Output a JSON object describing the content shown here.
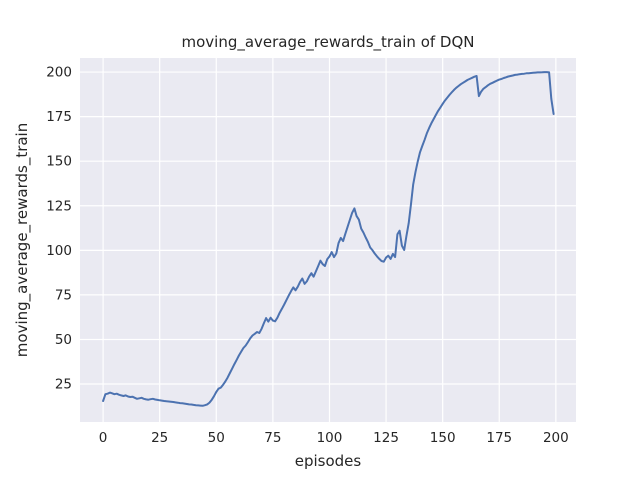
{
  "chart_data": {
    "type": "line",
    "title": "moving_average_rewards_train of DQN",
    "xlabel": "episodes",
    "ylabel": "moving_average_rewards_train",
    "x_ticks": [
      0,
      25,
      50,
      75,
      100,
      125,
      150,
      175,
      200
    ],
    "y_ticks": [
      25,
      50,
      75,
      100,
      125,
      150,
      175,
      200
    ],
    "xlim": [
      -10.2,
      208.9
    ],
    "ylim": [
      3.7,
      207.9
    ],
    "grid": true,
    "legend_visible": false,
    "style": {
      "figure_background": "#ffffff",
      "panel_background": "#eaeaf2",
      "grid_color": "#ffffff",
      "line_color": "#4c72b0",
      "text_color": "#262626"
    },
    "series": [
      {
        "name": "moving_average_rewards_train",
        "points": [
          [
            0,
            15.5
          ],
          [
            1,
            19.3
          ],
          [
            2,
            19.6
          ],
          [
            3,
            20.2
          ],
          [
            4,
            19.8
          ],
          [
            5,
            19.3
          ],
          [
            6,
            19.6
          ],
          [
            7,
            19.0
          ],
          [
            8,
            18.6
          ],
          [
            9,
            18.3
          ],
          [
            10,
            18.6
          ],
          [
            11,
            18.0
          ],
          [
            12,
            17.7
          ],
          [
            13,
            17.9
          ],
          [
            14,
            17.3
          ],
          [
            15,
            16.7
          ],
          [
            16,
            17.0
          ],
          [
            17,
            17.3
          ],
          [
            18,
            16.7
          ],
          [
            19,
            16.4
          ],
          [
            20,
            16.2
          ],
          [
            21,
            16.5
          ],
          [
            22,
            16.7
          ],
          [
            23,
            16.3
          ],
          [
            24,
            16.1
          ],
          [
            25,
            15.9
          ],
          [
            26,
            15.7
          ],
          [
            27,
            15.5
          ],
          [
            28,
            15.3
          ],
          [
            29,
            15.2
          ],
          [
            30,
            15.1
          ],
          [
            31,
            14.9
          ],
          [
            32,
            14.7
          ],
          [
            33,
            14.5
          ],
          [
            34,
            14.3
          ],
          [
            35,
            14.2
          ],
          [
            36,
            14.0
          ],
          [
            37,
            13.8
          ],
          [
            38,
            13.6
          ],
          [
            39,
            13.5
          ],
          [
            40,
            13.3
          ],
          [
            41,
            13.1
          ],
          [
            42,
            13.0
          ],
          [
            43,
            12.9
          ],
          [
            44,
            12.8
          ],
          [
            45,
            13.1
          ],
          [
            46,
            13.6
          ],
          [
            47,
            14.6
          ],
          [
            48,
            16.2
          ],
          [
            49,
            18.2
          ],
          [
            50,
            20.6
          ],
          [
            51,
            22.4
          ],
          [
            52,
            23.0
          ],
          [
            53,
            24.6
          ],
          [
            54,
            26.4
          ],
          [
            55,
            28.6
          ],
          [
            56,
            31.2
          ],
          [
            57,
            33.6
          ],
          [
            58,
            36.2
          ],
          [
            59,
            38.6
          ],
          [
            60,
            41.0
          ],
          [
            61,
            43.2
          ],
          [
            62,
            45.2
          ],
          [
            63,
            46.6
          ],
          [
            64,
            48.6
          ],
          [
            65,
            50.6
          ],
          [
            66,
            52.2
          ],
          [
            67,
            53.2
          ],
          [
            68,
            54.2
          ],
          [
            69,
            53.6
          ],
          [
            70,
            56.0
          ],
          [
            71,
            59.0
          ],
          [
            72,
            62.0
          ],
          [
            73,
            60.0
          ],
          [
            74,
            62.2
          ],
          [
            75,
            60.6
          ],
          [
            76,
            60.2
          ],
          [
            77,
            62.2
          ],
          [
            78,
            65.0
          ],
          [
            79,
            67.2
          ],
          [
            80,
            69.6
          ],
          [
            81,
            72.2
          ],
          [
            82,
            74.6
          ],
          [
            83,
            77.0
          ],
          [
            84,
            79.2
          ],
          [
            85,
            77.6
          ],
          [
            86,
            79.6
          ],
          [
            87,
            82.2
          ],
          [
            88,
            84.2
          ],
          [
            89,
            81.2
          ],
          [
            90,
            82.6
          ],
          [
            91,
            85.2
          ],
          [
            92,
            87.2
          ],
          [
            93,
            85.2
          ],
          [
            94,
            88.2
          ],
          [
            95,
            91.2
          ],
          [
            96,
            94.2
          ],
          [
            97,
            92.2
          ],
          [
            98,
            91.2
          ],
          [
            99,
            95.0
          ],
          [
            100,
            96.6
          ],
          [
            101,
            99.0
          ],
          [
            102,
            96.2
          ],
          [
            103,
            98.2
          ],
          [
            104,
            104.0
          ],
          [
            105,
            107.0
          ],
          [
            106,
            105.2
          ],
          [
            107,
            109.2
          ],
          [
            108,
            113.2
          ],
          [
            109,
            117.0
          ],
          [
            110,
            121.0
          ],
          [
            111,
            123.5
          ],
          [
            112,
            119.2
          ],
          [
            113,
            117.2
          ],
          [
            114,
            112.2
          ],
          [
            115,
            110.0
          ],
          [
            116,
            107.2
          ],
          [
            117,
            104.6
          ],
          [
            118,
            101.6
          ],
          [
            119,
            100.0
          ],
          [
            120,
            98.2
          ],
          [
            121,
            96.6
          ],
          [
            122,
            95.2
          ],
          [
            123,
            94.0
          ],
          [
            124,
            93.6
          ],
          [
            125,
            96.0
          ],
          [
            126,
            97.0
          ],
          [
            127,
            95.2
          ],
          [
            128,
            98.0
          ],
          [
            129,
            96.2
          ],
          [
            130,
            109.0
          ],
          [
            131,
            111.0
          ],
          [
            132,
            102.6
          ],
          [
            133,
            100.2
          ],
          [
            134,
            108.0
          ],
          [
            135,
            115.2
          ],
          [
            136,
            126.0
          ],
          [
            137,
            137.0
          ],
          [
            138,
            144.0
          ],
          [
            139,
            150.0
          ],
          [
            140,
            155.0
          ],
          [
            141,
            158.6
          ],
          [
            142,
            162.0
          ],
          [
            143,
            165.6
          ],
          [
            144,
            168.6
          ],
          [
            145,
            171.2
          ],
          [
            146,
            173.6
          ],
          [
            147,
            176.0
          ],
          [
            148,
            178.2
          ],
          [
            149,
            180.2
          ],
          [
            150,
            182.2
          ],
          [
            151,
            184.0
          ],
          [
            152,
            185.6
          ],
          [
            153,
            187.2
          ],
          [
            154,
            188.6
          ],
          [
            155,
            190.0
          ],
          [
            156,
            191.2
          ],
          [
            157,
            192.2
          ],
          [
            158,
            193.2
          ],
          [
            159,
            194.0
          ],
          [
            160,
            194.8
          ],
          [
            161,
            195.6
          ],
          [
            162,
            196.2
          ],
          [
            163,
            196.8
          ],
          [
            164,
            197.4
          ],
          [
            165,
            197.8
          ],
          [
            166,
            186.5
          ],
          [
            167,
            189.0
          ],
          [
            168,
            190.6
          ],
          [
            169,
            191.6
          ],
          [
            170,
            192.6
          ],
          [
            171,
            193.4
          ],
          [
            172,
            194.0
          ],
          [
            173,
            194.6
          ],
          [
            174,
            195.2
          ],
          [
            175,
            195.8
          ],
          [
            176,
            196.2
          ],
          [
            177,
            196.7
          ],
          [
            178,
            197.1
          ],
          [
            179,
            197.5
          ],
          [
            180,
            197.8
          ],
          [
            181,
            198.1
          ],
          [
            182,
            198.4
          ],
          [
            183,
            198.6
          ],
          [
            184,
            198.8
          ],
          [
            185,
            199.0
          ],
          [
            186,
            199.1
          ],
          [
            187,
            199.3
          ],
          [
            188,
            199.4
          ],
          [
            189,
            199.5
          ],
          [
            190,
            199.6
          ],
          [
            191,
            199.7
          ],
          [
            192,
            199.8
          ],
          [
            193,
            199.8
          ],
          [
            194,
            199.9
          ],
          [
            195,
            200.0
          ],
          [
            196,
            200.0
          ],
          [
            197,
            199.8
          ],
          [
            198,
            185.0
          ],
          [
            199,
            176.5
          ]
        ]
      }
    ]
  }
}
